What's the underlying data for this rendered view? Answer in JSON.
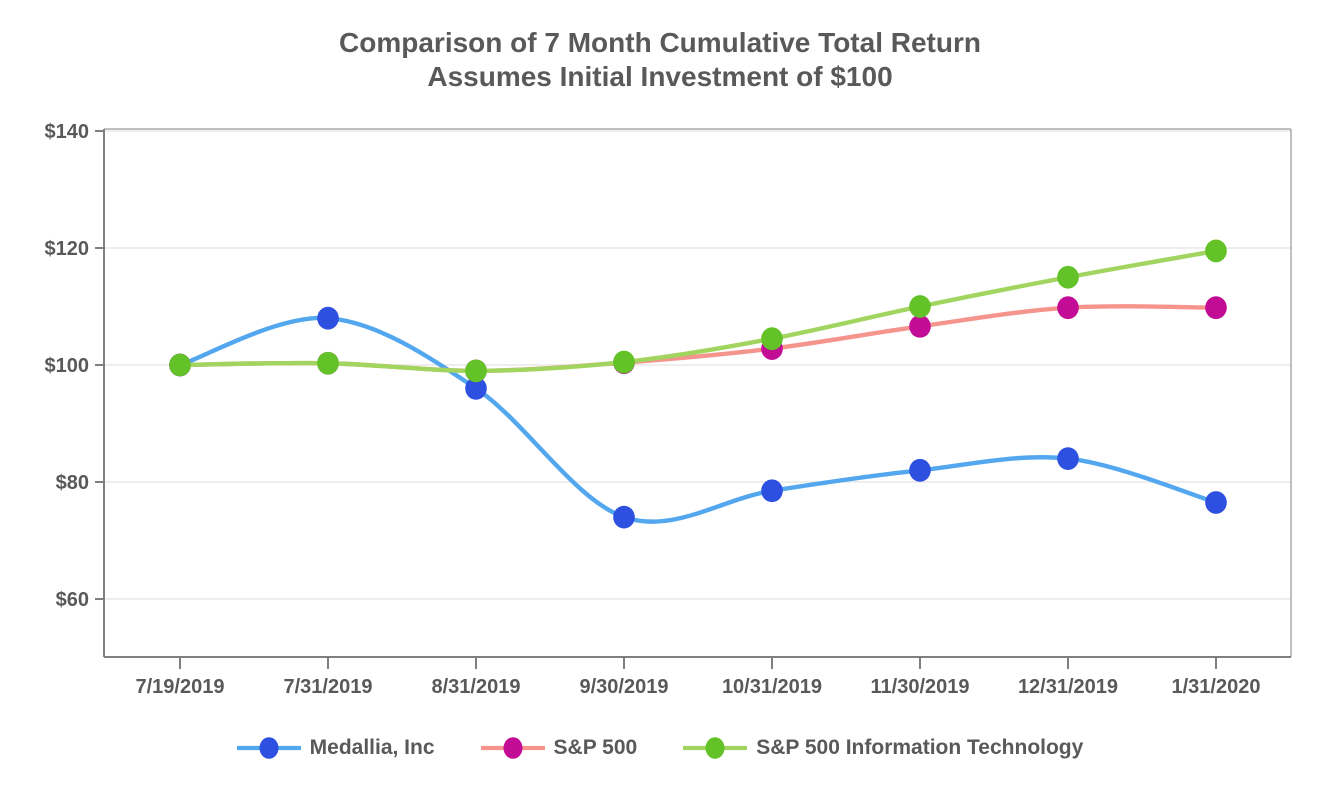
{
  "chart_data": {
    "type": "line",
    "title": "Comparison of 7 Month Cumulative Total Return",
    "subtitle": "Assumes Initial Investment of $100",
    "x_categories": [
      "7/19/2019",
      "7/31/2019",
      "8/31/2019",
      "9/30/2019",
      "10/31/2019",
      "11/30/2019",
      "12/31/2019",
      "1/31/2020"
    ],
    "y_axis": {
      "tick_labels": [
        "$140",
        "$120",
        "$100",
        "$80",
        "$60"
      ],
      "tick_values": [
        140,
        120,
        100,
        80,
        60
      ],
      "ylim": [
        50,
        140.5
      ],
      "unit_prefix": "$"
    },
    "grid": "horizontal",
    "line_style": "smooth",
    "legend_position": "bottom",
    "series": [
      {
        "name": "Medallia, Inc",
        "marker_color": "#2E50E0",
        "line_color": "#53A7EF",
        "values": [
          100,
          108,
          96,
          74,
          78.5,
          82,
          84,
          76.5
        ]
      },
      {
        "name": "S&P 500",
        "marker_color": "#C30C96",
        "line_color": "#F5938D",
        "values": [
          100,
          100.3,
          99,
          100.4,
          102.8,
          106.6,
          109.8,
          109.8
        ]
      },
      {
        "name": "S&P 500 Information Technology",
        "marker_color": "#62C227",
        "line_color": "#A1D55F",
        "values": [
          100,
          100.3,
          99,
          100.5,
          104.5,
          110,
          115,
          119.5
        ]
      }
    ],
    "colors": {
      "title_text": "#595959",
      "tick_text": "#595959",
      "axis": "#7F7F7F",
      "frame": "#ABABAB",
      "gridline": "#E4E4E4"
    }
  }
}
